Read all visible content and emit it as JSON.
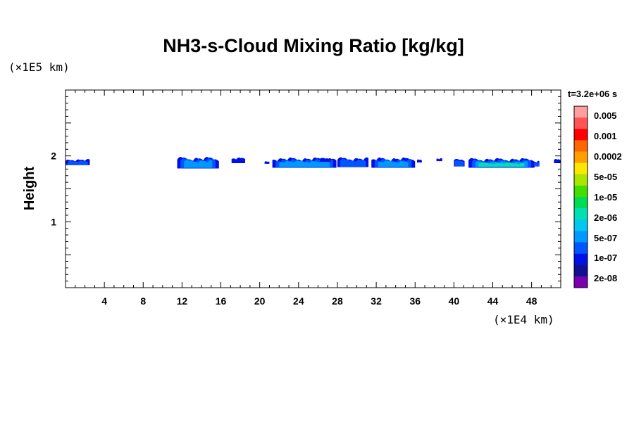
{
  "chart_data": {
    "type": "contour",
    "title": "NH3-s-Cloud Mixing Ratio [kg/kg]",
    "xlabel": "",
    "ylabel": "Height",
    "x_unit": "(×1E4 km)",
    "y_unit": "(×1E5 km)",
    "time_label": "t=3.2e+06 s",
    "xlim": [
      0,
      51
    ],
    "ylim": [
      0,
      3
    ],
    "x_ticks": [
      4,
      8,
      12,
      16,
      20,
      24,
      28,
      32,
      36,
      40,
      44,
      48
    ],
    "y_ticks": [
      1,
      2
    ],
    "colorbar": {
      "levels": [
        "0.005",
        "0.001",
        "0.0002",
        "5e-05",
        "1e-05",
        "2e-06",
        "5e-07",
        "1e-07",
        "2e-08"
      ],
      "colors": [
        "#ff9e9e",
        "#ff5555",
        "#ff0000",
        "#ff6600",
        "#ffa000",
        "#ffe600",
        "#a8e600",
        "#44dd00",
        "#00dd55",
        "#00e0b0",
        "#00c8ee",
        "#0099ff",
        "#0055ff",
        "#0010e8",
        "#101090",
        "#7a00b0"
      ]
    },
    "cloud_patches": [
      {
        "x0": 0.0,
        "x1": 2.5,
        "ytop": 1.96,
        "ybot": 1.86,
        "max_level": 1
      },
      {
        "x0": 11.5,
        "x1": 15.8,
        "ytop": 2.0,
        "ybot": 1.81,
        "max_level": 2
      },
      {
        "x0": 17.1,
        "x1": 18.5,
        "ytop": 1.98,
        "ybot": 1.89,
        "max_level": 0
      },
      {
        "x0": 20.5,
        "x1": 21.0,
        "ytop": 1.92,
        "ybot": 1.88,
        "max_level": 0
      },
      {
        "x0": 21.3,
        "x1": 27.9,
        "ytop": 1.99,
        "ybot": 1.82,
        "max_level": 2
      },
      {
        "x0": 26.2,
        "x1": 27.3,
        "ytop": 1.98,
        "ybot": 1.91,
        "max_level": 0
      },
      {
        "x0": 28.0,
        "x1": 31.2,
        "ytop": 1.99,
        "ybot": 1.83,
        "max_level": 1
      },
      {
        "x0": 31.5,
        "x1": 36.0,
        "ytop": 1.99,
        "ybot": 1.82,
        "max_level": 2
      },
      {
        "x0": 36.2,
        "x1": 36.7,
        "ytop": 1.95,
        "ybot": 1.9,
        "max_level": 0
      },
      {
        "x0": 38.2,
        "x1": 38.8,
        "ytop": 1.97,
        "ybot": 1.92,
        "max_level": 0
      },
      {
        "x0": 40.0,
        "x1": 41.1,
        "ytop": 1.98,
        "ybot": 1.84,
        "max_level": 1
      },
      {
        "x0": 41.5,
        "x1": 48.3,
        "ytop": 1.98,
        "ybot": 1.82,
        "max_level": 3
      },
      {
        "x0": 48.2,
        "x1": 48.8,
        "ytop": 1.93,
        "ybot": 1.84,
        "max_level": 1
      },
      {
        "x0": 50.3,
        "x1": 51.0,
        "ytop": 1.96,
        "ybot": 1.89,
        "max_level": 0
      }
    ]
  }
}
